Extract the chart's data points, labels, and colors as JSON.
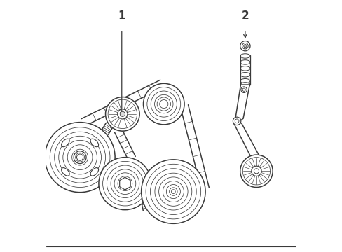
{
  "bg_color": "#ffffff",
  "line_color": "#3a3a3a",
  "lw": 1.1,
  "label1": "1",
  "label2": "2",
  "fig_w": 4.89,
  "fig_h": 3.6,
  "dpi": 100
}
